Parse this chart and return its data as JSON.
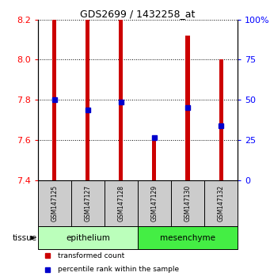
{
  "title": "GDS2699 / 1432258_at",
  "samples": [
    "GSM147125",
    "GSM147127",
    "GSM147128",
    "GSM147129",
    "GSM147130",
    "GSM147132"
  ],
  "bar_tops": [
    8.2,
    8.2,
    8.2,
    7.62,
    8.12,
    8.0
  ],
  "bar_bottom": 7.4,
  "percentile_values": [
    7.8,
    7.75,
    7.79,
    7.61,
    7.76,
    7.67
  ],
  "ylim_left": [
    7.4,
    8.2
  ],
  "yticks_left": [
    7.4,
    7.6,
    7.8,
    8.0,
    8.2
  ],
  "ylim_right": [
    0,
    100
  ],
  "yticks_right": [
    0,
    25,
    50,
    75,
    100
  ],
  "groups": [
    {
      "label": "epithelium",
      "n": 3,
      "color": "#bbffbb"
    },
    {
      "label": "mesenchyme",
      "n": 3,
      "color": "#44ee44"
    }
  ],
  "tissue_label": "tissue",
  "bar_color": "#cc0000",
  "percentile_color": "#0000cc",
  "bar_width": 0.12,
  "background_label": "#cccccc",
  "legend_items": [
    {
      "color": "#cc0000",
      "label": "transformed count"
    },
    {
      "color": "#0000cc",
      "label": "percentile rank within the sample"
    }
  ]
}
